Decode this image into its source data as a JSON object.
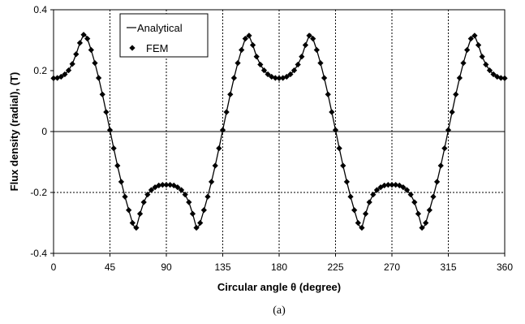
{
  "chart_data": {
    "type": "line",
    "caption": "(a)",
    "xlabel": "Circular angle θ (degree)",
    "ylabel": "Flux density (radial), (T)",
    "xlim": [
      0,
      360
    ],
    "ylim": [
      -0.4,
      0.4
    ],
    "xticks": [
      0,
      45,
      90,
      135,
      180,
      225,
      270,
      315,
      360
    ],
    "yticks": [
      -0.4,
      -0.2,
      0,
      0.2,
      0.4
    ],
    "ytick_labels": [
      "-0.4",
      "-0.2",
      "0",
      "0.2",
      "0.4"
    ],
    "grid": "dotted vertical lines at x ticks, dotted horizontal line at -0.2, solid horizontal line at 0",
    "legend_position": "top-left",
    "colors": {
      "line": "#000000",
      "marker": "#000000",
      "axis": "#000000"
    },
    "series": [
      {
        "name": "Analytical",
        "style": "line",
        "x": [
          0,
          3,
          6,
          9,
          12,
          15,
          18,
          21,
          24,
          25,
          27,
          30,
          33,
          36,
          39,
          42,
          45,
          48,
          51,
          54,
          57,
          60,
          63,
          65,
          66,
          69,
          72,
          75,
          78,
          81,
          84,
          87,
          90,
          93,
          96,
          99,
          102,
          105,
          108,
          111,
          114,
          115,
          117,
          120,
          123,
          126,
          129,
          132,
          135,
          138,
          141,
          144,
          147,
          150,
          153,
          155,
          156,
          159,
          162,
          165,
          168,
          171,
          174,
          177,
          180,
          183,
          186,
          189,
          192,
          195,
          198,
          201,
          204,
          205,
          207,
          210,
          213,
          216,
          219,
          222,
          225,
          228,
          231,
          234,
          237,
          240,
          243,
          245,
          246,
          249,
          252,
          255,
          258,
          261,
          264,
          267,
          270,
          273,
          276,
          279,
          282,
          285,
          288,
          291,
          294,
          295,
          297,
          300,
          303,
          306,
          309,
          312,
          315,
          318,
          321,
          324,
          327,
          330,
          333,
          335,
          336,
          339,
          342,
          345,
          348,
          351,
          354,
          357,
          360
        ],
        "y": [
          0.175,
          0.176,
          0.18,
          0.188,
          0.201,
          0.222,
          0.254,
          0.291,
          0.318,
          0.32,
          0.305,
          0.268,
          0.225,
          0.176,
          0.122,
          0.064,
          0.005,
          -0.055,
          -0.112,
          -0.165,
          -0.214,
          -0.258,
          -0.3,
          -0.318,
          -0.316,
          -0.27,
          -0.232,
          -0.207,
          -0.192,
          -0.183,
          -0.177,
          -0.175,
          -0.175,
          -0.175,
          -0.177,
          -0.183,
          -0.192,
          -0.207,
          -0.232,
          -0.27,
          -0.316,
          -0.318,
          -0.3,
          -0.258,
          -0.214,
          -0.165,
          -0.112,
          -0.055,
          0.005,
          0.064,
          0.122,
          0.176,
          0.225,
          0.268,
          0.305,
          0.316,
          0.315,
          0.284,
          0.246,
          0.22,
          0.201,
          0.188,
          0.18,
          0.176,
          0.175,
          0.176,
          0.18,
          0.188,
          0.201,
          0.22,
          0.246,
          0.284,
          0.315,
          0.32,
          0.305,
          0.268,
          0.225,
          0.176,
          0.122,
          0.064,
          0.005,
          -0.055,
          -0.112,
          -0.165,
          -0.214,
          -0.258,
          -0.3,
          -0.318,
          -0.316,
          -0.27,
          -0.232,
          -0.207,
          -0.192,
          -0.183,
          -0.177,
          -0.175,
          -0.175,
          -0.175,
          -0.177,
          -0.183,
          -0.192,
          -0.207,
          -0.232,
          -0.27,
          -0.316,
          -0.318,
          -0.3,
          -0.258,
          -0.214,
          -0.165,
          -0.112,
          -0.055,
          0.005,
          0.064,
          0.122,
          0.176,
          0.225,
          0.268,
          0.305,
          0.316,
          0.315,
          0.284,
          0.246,
          0.22,
          0.201,
          0.188,
          0.18,
          0.176,
          0.175
        ]
      },
      {
        "name": "FEM",
        "style": "markers",
        "x": [
          0,
          3,
          6,
          9,
          12,
          15,
          18,
          21,
          24,
          27,
          30,
          33,
          36,
          39,
          42,
          45,
          48,
          51,
          54,
          57,
          60,
          63,
          66,
          69,
          72,
          75,
          78,
          81,
          84,
          87,
          90,
          93,
          96,
          99,
          102,
          105,
          108,
          111,
          114,
          117,
          120,
          123,
          126,
          129,
          132,
          135,
          138,
          141,
          144,
          147,
          150,
          153,
          156,
          159,
          162,
          165,
          168,
          171,
          174,
          177,
          180,
          183,
          186,
          189,
          192,
          195,
          198,
          201,
          204,
          207,
          210,
          213,
          216,
          219,
          222,
          225,
          228,
          231,
          234,
          237,
          240,
          243,
          246,
          249,
          252,
          255,
          258,
          261,
          264,
          267,
          270,
          273,
          276,
          279,
          282,
          285,
          288,
          291,
          294,
          297,
          300,
          303,
          306,
          309,
          312,
          315,
          318,
          321,
          324,
          327,
          330,
          333,
          336,
          339,
          342,
          345,
          348,
          351,
          354,
          357,
          360
        ],
        "y": [
          0.175,
          0.176,
          0.18,
          0.188,
          0.201,
          0.222,
          0.254,
          0.291,
          0.318,
          0.305,
          0.268,
          0.225,
          0.176,
          0.122,
          0.064,
          0.005,
          -0.055,
          -0.112,
          -0.165,
          -0.214,
          -0.258,
          -0.3,
          -0.316,
          -0.27,
          -0.232,
          -0.207,
          -0.192,
          -0.183,
          -0.177,
          -0.175,
          -0.175,
          -0.175,
          -0.177,
          -0.183,
          -0.192,
          -0.207,
          -0.232,
          -0.27,
          -0.316,
          -0.3,
          -0.258,
          -0.214,
          -0.165,
          -0.112,
          -0.055,
          0.005,
          0.064,
          0.122,
          0.176,
          0.225,
          0.268,
          0.305,
          0.315,
          0.284,
          0.246,
          0.22,
          0.201,
          0.188,
          0.18,
          0.176,
          0.175,
          0.176,
          0.18,
          0.188,
          0.201,
          0.22,
          0.246,
          0.284,
          0.315,
          0.305,
          0.268,
          0.225,
          0.176,
          0.122,
          0.064,
          0.005,
          -0.055,
          -0.112,
          -0.165,
          -0.214,
          -0.258,
          -0.3,
          -0.316,
          -0.27,
          -0.232,
          -0.207,
          -0.192,
          -0.183,
          -0.177,
          -0.175,
          -0.175,
          -0.175,
          -0.177,
          -0.183,
          -0.192,
          -0.207,
          -0.232,
          -0.27,
          -0.316,
          -0.3,
          -0.258,
          -0.214,
          -0.165,
          -0.112,
          -0.055,
          0.005,
          0.064,
          0.122,
          0.176,
          0.225,
          0.268,
          0.305,
          0.315,
          0.284,
          0.246,
          0.22,
          0.201,
          0.188,
          0.18,
          0.176,
          0.175
        ]
      }
    ]
  }
}
